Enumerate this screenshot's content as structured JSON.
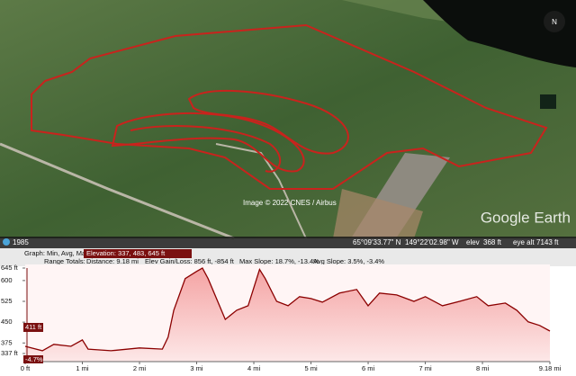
{
  "map": {
    "attribution": "Image © 2022 CNES / Airbus",
    "logo": "Google Earth"
  },
  "status_bar": {
    "year": "1985",
    "latitude": "65°09'33.77\" N",
    "longitude": "149°22'02.98\" W",
    "elevation_label": "elev",
    "elevation": "368 ft",
    "eye_alt_label": "eye alt",
    "eye_alt": "7143 ft"
  },
  "profile_header": {
    "graph": "Graph: Min, Avg, Max",
    "elevation": "Elevation: 337, 483, 645 ft",
    "range_totals": "Range Totals:",
    "distance": "Distance: 9.18 mi",
    "elev_gain_loss": "Elev Gain/Loss: 856 ft, -854 ft",
    "max_slope": "Max Slope: 18.7%, -13.4%",
    "avg_slope": "Avg Slope: 3.5%, -3.4%"
  },
  "cursor": {
    "elevation": "411 ft",
    "slope": "-4.7%"
  },
  "chart_data": {
    "type": "area",
    "x": [
      0,
      0.3,
      0.5,
      0.8,
      1.0,
      1.1,
      1.5,
      2.0,
      2.4,
      2.5,
      2.6,
      2.8,
      3.0,
      3.1,
      3.2,
      3.4,
      3.5,
      3.7,
      3.9,
      4.0,
      4.1,
      4.2,
      4.4,
      4.6,
      4.8,
      5.0,
      5.2,
      5.5,
      5.8,
      6.0,
      6.2,
      6.5,
      6.8,
      7.0,
      7.3,
      7.6,
      7.9,
      8.1,
      8.4,
      8.6,
      8.8,
      9.0,
      9.18
    ],
    "values": [
      363,
      347,
      370,
      363,
      386,
      353,
      347,
      357,
      353,
      396,
      493,
      607,
      633,
      645,
      607,
      509,
      460,
      493,
      509,
      574,
      640,
      607,
      525,
      509,
      542,
      535,
      522,
      555,
      568,
      509,
      555,
      548,
      525,
      542,
      509,
      525,
      542,
      509,
      519,
      493,
      451,
      438,
      418
    ],
    "color": "#8b0000",
    "xlim": [
      0,
      9.18
    ],
    "xticks": [
      {
        "value": 0,
        "label": "0 ft"
      },
      {
        "value": 1,
        "label": "1 mi"
      },
      {
        "value": 2,
        "label": "2 mi"
      },
      {
        "value": 3,
        "label": "3 mi"
      },
      {
        "value": 4,
        "label": "4 mi"
      },
      {
        "value": 5,
        "label": "5 mi"
      },
      {
        "value": 6,
        "label": "6 mi"
      },
      {
        "value": 7,
        "label": "7 mi"
      },
      {
        "value": 8,
        "label": "8 mi"
      },
      {
        "value": 9.18,
        "label": "9.18 mi"
      }
    ],
    "ylim": [
      337,
      645
    ],
    "yticks": [
      {
        "value": 645,
        "label": "645 ft"
      },
      600,
      525,
      450,
      375,
      {
        "value": 337,
        "label": "337 ft"
      }
    ]
  }
}
